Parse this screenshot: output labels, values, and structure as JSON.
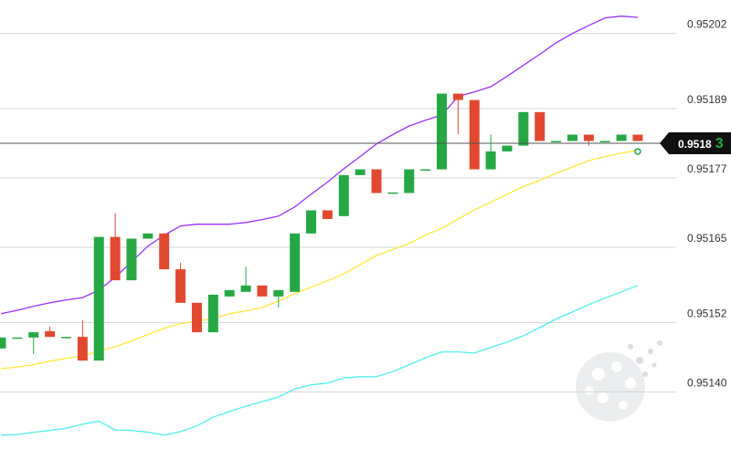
{
  "chart_data": {
    "type": "candlestick",
    "ylim": [
      0.951301,
      0.952078
    ],
    "yticks": [
      0.95202,
      0.95189,
      0.95177,
      0.95165,
      0.95152,
      {
        "value": 0.9514,
        "label": "0.95140"
      }
    ],
    "grid": true,
    "up_color": "#25a843",
    "down_color": "#e0492f",
    "open": [
      0.951475,
      0.951494,
      0.951494,
      0.951505,
      0.951495,
      0.951495,
      0.951454,
      0.951668,
      0.951593,
      0.951665,
      0.951674,
      0.951612,
      0.951554,
      0.951503,
      0.951565,
      0.951573,
      0.951584,
      0.951565,
      0.951573,
      0.951674,
      0.951714,
      0.951704,
      0.951775,
      0.951785,
      0.951745,
      0.951744,
      0.951785,
      0.951785,
      0.951916,
      0.951905,
      0.951785,
      0.951816,
      0.951826,
      0.951884,
      0.951834,
      0.951834,
      0.951845,
      0.951834,
      0.951834,
      0.951845
    ],
    "high": [
      0.951494,
      0.951494,
      0.951503,
      0.951513,
      0.951495,
      0.951524,
      0.951668,
      0.951709,
      0.951665,
      0.951674,
      0.951674,
      0.951623,
      0.951554,
      0.951568,
      0.951576,
      0.951616,
      0.951584,
      0.951576,
      0.951674,
      0.951714,
      0.951714,
      0.951775,
      0.951785,
      0.951785,
      0.951745,
      0.951785,
      0.951785,
      0.951916,
      0.951916,
      0.951905,
      0.951845,
      0.951826,
      0.951884,
      0.951884,
      0.951834,
      0.951845,
      0.951845,
      0.951834,
      0.951845,
      0.951845
    ],
    "low": [
      0.951475,
      0.951494,
      0.951465,
      0.951495,
      0.951495,
      0.951454,
      0.951454,
      0.951593,
      0.951593,
      0.951665,
      0.951612,
      0.951554,
      0.951503,
      0.951503,
      0.951565,
      0.951573,
      0.951565,
      0.951546,
      0.951573,
      0.951674,
      0.951699,
      0.951704,
      0.951775,
      0.951744,
      0.951745,
      0.951744,
      0.951785,
      0.951785,
      0.951846,
      0.951785,
      0.951785,
      0.951816,
      0.951826,
      0.951834,
      0.951834,
      0.951834,
      0.951826,
      0.951834,
      0.951834,
      0.951834
    ],
    "close": [
      0.951494,
      0.951494,
      0.951503,
      0.951495,
      0.951495,
      0.951454,
      0.951668,
      0.951593,
      0.951665,
      0.951674,
      0.951612,
      0.951554,
      0.951503,
      0.951568,
      0.951576,
      0.951584,
      0.951565,
      0.951576,
      0.951674,
      0.951714,
      0.951699,
      0.951775,
      0.951785,
      0.951744,
      0.951745,
      0.951785,
      0.951785,
      0.951916,
      0.951905,
      0.951785,
      0.951816,
      0.951826,
      0.951884,
      0.951834,
      0.951834,
      0.951845,
      0.951834,
      0.951834,
      0.951845,
      0.951834
    ],
    "lines": [
      {
        "color": "#9b30ff",
        "values": [
          0.951535,
          0.951541,
          0.951548,
          0.951554,
          0.951559,
          0.951563,
          0.951576,
          0.951598,
          0.951625,
          0.951652,
          0.951671,
          0.951687,
          0.95169,
          0.95169,
          0.95169,
          0.951693,
          0.951698,
          0.951704,
          0.95172,
          0.951742,
          0.951763,
          0.951786,
          0.951807,
          0.951829,
          0.951845,
          0.95186,
          0.95187,
          0.951879,
          0.951911,
          0.951919,
          0.951928,
          0.951946,
          0.951965,
          0.951984,
          0.952004,
          0.95202,
          0.952034,
          0.952047,
          0.95205,
          0.952048
        ]
      },
      {
        "color": "#ffe83a",
        "values": [
          0.95144,
          0.951443,
          0.951447,
          0.951453,
          0.951458,
          0.951462,
          0.95147,
          0.951478,
          0.951488,
          0.951499,
          0.95151,
          0.951518,
          0.951522,
          0.951527,
          0.951535,
          0.95154,
          0.951546,
          0.951557,
          0.95157,
          0.951581,
          0.951592,
          0.951604,
          0.95162,
          0.951636,
          0.951646,
          0.951657,
          0.951671,
          0.951683,
          0.951699,
          0.951715,
          0.951728,
          0.951742,
          0.951755,
          0.951766,
          0.951778,
          0.951789,
          0.9518,
          0.951807,
          0.951813,
          0.951818
        ]
      },
      {
        "color": "#4ff0ee",
        "values": [
          0.951325,
          0.951326,
          0.95133,
          0.951333,
          0.951337,
          0.951344,
          0.951349,
          0.951334,
          0.951333,
          0.95133,
          0.951325,
          0.951331,
          0.951341,
          0.951356,
          0.951366,
          0.951375,
          0.951383,
          0.951391,
          0.951405,
          0.951412,
          0.951415,
          0.951424,
          0.951426,
          0.951426,
          0.951435,
          0.951447,
          0.951459,
          0.951469,
          0.951469,
          0.951467,
          0.951477,
          0.951486,
          0.951497,
          0.951511,
          0.951526,
          0.951538,
          0.951551,
          0.951562,
          0.951573,
          0.951584
        ]
      }
    ],
    "last_price": 0.95183,
    "last_price_label": "0.9518",
    "last_price_pipette": "3"
  }
}
